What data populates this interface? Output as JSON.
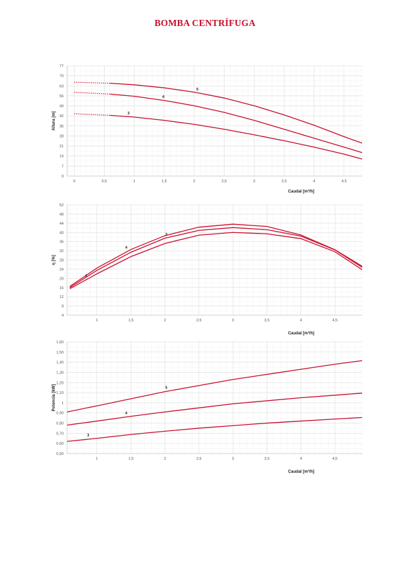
{
  "title": "BOMBA CENTRÍFUGA",
  "colors": {
    "curve": "#c8102e",
    "grid_major": "#d9d9d9",
    "grid_minor": "#eeeeee",
    "title": "#c8102e"
  },
  "chart_data": [
    {
      "type": "line",
      "xlabel": "Caudal [m³/h]",
      "ylabel": "Altura [m]",
      "xlim": [
        -0.12,
        4.8
      ],
      "ylim": [
        0,
        77
      ],
      "xticks": [
        0,
        0.5,
        1,
        1.5,
        2,
        2.5,
        3,
        3.5,
        4,
        4.5
      ],
      "yticks": [
        0,
        7,
        14,
        21,
        28,
        35,
        42,
        49,
        56,
        63,
        70,
        77
      ],
      "grid": true,
      "dotted_until": 0.6,
      "series": [
        {
          "name": "5",
          "label_x": 2.02,
          "x": [
            0,
            0.6,
            1,
            1.5,
            2,
            2.5,
            3,
            3.5,
            4,
            4.5,
            4.8
          ],
          "values": [
            65.5,
            64.8,
            63.7,
            61.6,
            58.6,
            54.5,
            49.1,
            42.7,
            35.5,
            27.5,
            23
          ]
        },
        {
          "name": "4",
          "label_x": 1.45,
          "x": [
            0,
            0.6,
            1,
            1.5,
            2,
            2.5,
            3,
            3.5,
            4,
            4.5,
            4.8
          ],
          "values": [
            58.5,
            57.2,
            55.7,
            52.8,
            49.1,
            44.5,
            38.9,
            32.7,
            26.4,
            20.2,
            16.4
          ]
        },
        {
          "name": "3",
          "label_x": 0.87,
          "x": [
            0,
            0.6,
            1,
            1.5,
            2,
            2.5,
            3,
            3.5,
            4,
            4.5,
            4.8
          ],
          "values": [
            43.5,
            42.4,
            41.2,
            38.9,
            36.1,
            32.7,
            28.8,
            24.7,
            20.2,
            15.3,
            11.9
          ]
        }
      ]
    },
    {
      "type": "line",
      "xlabel": "Caudal [m³/h]",
      "ylabel": "η [%]",
      "xlim": [
        0.56,
        4.9
      ],
      "ylim": [
        4,
        52
      ],
      "xticks": [
        1,
        1.5,
        2,
        2.5,
        3,
        3.5,
        4,
        4.5
      ],
      "yticks": [
        4,
        8,
        12,
        16,
        20,
        24,
        28,
        32,
        36,
        40,
        44,
        48,
        52
      ],
      "grid": true,
      "series": [
        {
          "name": "4",
          "label_x": 1.43,
          "x": [
            0.6,
            1,
            1.5,
            2,
            2.5,
            3,
            3.5,
            4,
            4.5,
            4.9
          ],
          "values": [
            16.5,
            24.5,
            32.6,
            38.6,
            42.3,
            43.6,
            42.6,
            38.9,
            32.5,
            25.3
          ]
        },
        {
          "name": "3",
          "label_x": 2.02,
          "x": [
            0.6,
            1,
            1.5,
            2,
            2.5,
            3,
            3.5,
            4,
            4.5,
            4.9
          ],
          "values": [
            16,
            23.5,
            31.4,
            37.5,
            40.9,
            42.1,
            41.2,
            38.4,
            32.4,
            24.8
          ]
        },
        {
          "name": "3",
          "label_x": 0.87,
          "x": [
            0.6,
            1,
            1.5,
            2,
            2.5,
            3,
            3.5,
            4,
            4.5,
            4.9
          ],
          "values": [
            15.5,
            22,
            29.5,
            35.2,
            38.8,
            40,
            39.4,
            37.3,
            31.6,
            23.8
          ]
        }
      ]
    },
    {
      "type": "line",
      "xlabel": "Caudal [m³/h]",
      "ylabel": "Potencia [kW]",
      "xlim": [
        0.56,
        4.9
      ],
      "ylim": [
        0.5,
        1.6
      ],
      "xticks": [
        1,
        1.5,
        2,
        2.5,
        3,
        3.5,
        4,
        4.5
      ],
      "yticks": [
        "0,50",
        "0,60",
        "0,70",
        "0,80",
        "0,90",
        1,
        "1,10",
        "1,20",
        "1,30",
        "1,40",
        "1,50",
        "1,60"
      ],
      "grid": true,
      "series": [
        {
          "name": "5",
          "label_x": 2.02,
          "x": [
            0.56,
            1,
            1.5,
            2,
            2.5,
            3,
            3.5,
            4,
            4.5,
            4.9
          ],
          "values": [
            0.91,
            0.97,
            1.04,
            1.11,
            1.17,
            1.23,
            1.28,
            1.33,
            1.38,
            1.415
          ]
        },
        {
          "name": "4",
          "label_x": 1.43,
          "x": [
            0.56,
            1,
            1.5,
            2,
            2.5,
            3,
            3.5,
            4,
            4.5,
            4.9
          ],
          "values": [
            0.78,
            0.82,
            0.867,
            0.91,
            0.95,
            0.99,
            1.02,
            1.05,
            1.075,
            1.095
          ]
        },
        {
          "name": "3",
          "label_x": 0.87,
          "x": [
            0.56,
            1,
            1.5,
            2,
            2.5,
            3,
            3.5,
            4,
            4.5,
            4.9
          ],
          "values": [
            0.62,
            0.65,
            0.688,
            0.72,
            0.75,
            0.775,
            0.8,
            0.82,
            0.84,
            0.855
          ]
        }
      ]
    }
  ]
}
